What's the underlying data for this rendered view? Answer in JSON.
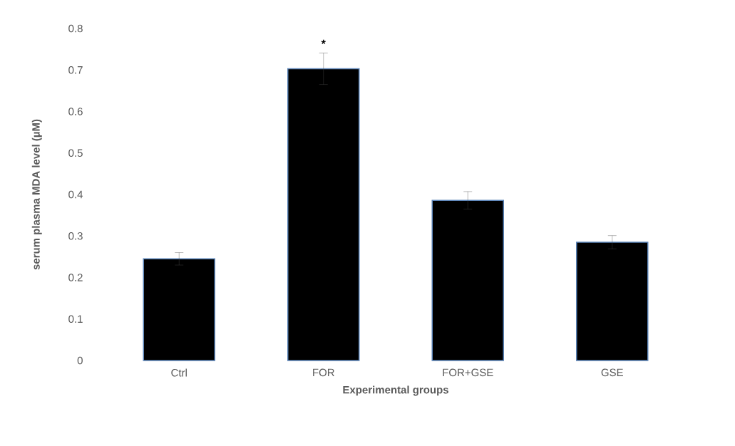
{
  "chart_data": {
    "type": "bar",
    "xlabel": "Experimental groups",
    "ylabel": "serum plasma MDA level (µM)",
    "categories": [
      "Ctrl",
      "FOR",
      "FOR+GSE",
      "GSE"
    ],
    "values": [
      0.245,
      0.703,
      0.386,
      0.285
    ],
    "errors": [
      0.015,
      0.038,
      0.021,
      0.016
    ],
    "color": "#000000",
    "ylim": [
      0,
      0.8
    ],
    "yticks": [
      0,
      0.1,
      0.2,
      0.3,
      0.4,
      0.5,
      0.6,
      0.7,
      0.8
    ],
    "grid": false,
    "annotations": [
      "*"
    ]
  }
}
